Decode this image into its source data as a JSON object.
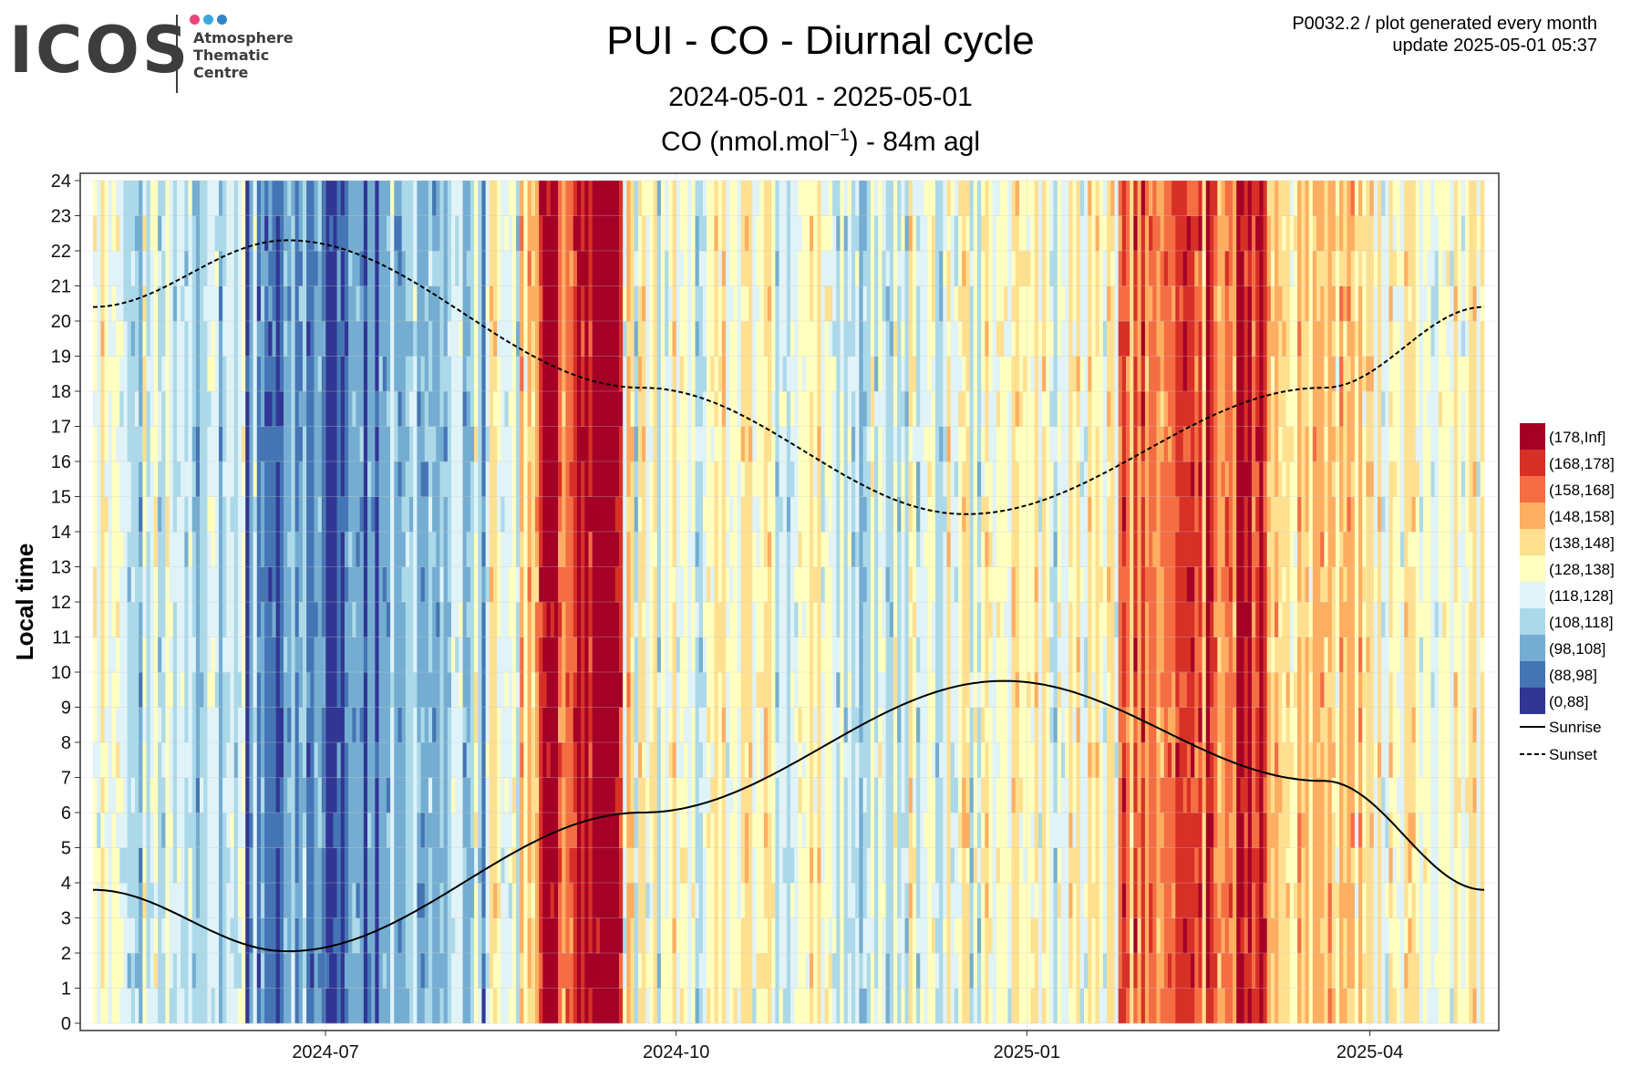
{
  "logo": {
    "word": "ICOS",
    "subtitle": "Atmosphere\nThematic\nCentre",
    "dot_colors": [
      "#e8457c",
      "#3aa8e0",
      "#2e86c9"
    ]
  },
  "header": {
    "title": "PUI - CO - Diurnal cycle",
    "date_range": "2024-05-01 - 2025-05-01",
    "plot_title_prefix": "CO (nmol.mol",
    "plot_title_sup": "−1",
    "plot_title_suffix": ") - 84m agl",
    "meta_line1": "P0032.2 / plot generated every month",
    "meta_line2": "update  2025-05-01 05:37"
  },
  "chart_data": {
    "type": "heatmap",
    "title": "PUI - CO - Diurnal cycle",
    "subtitle": "2024-05-01 - 2025-05-01",
    "plot_title": "CO (nmol.mol−1) - 84m agl",
    "xlabel": "",
    "ylabel": "Local time",
    "x_range": [
      "2024-05-01",
      "2025-05-01"
    ],
    "x_ticks": [
      "2024-07",
      "2024-10",
      "2025-01",
      "2025-04"
    ],
    "x_tick_dates": [
      "2024-07-01",
      "2024-10-01",
      "2025-01-01",
      "2025-04-01"
    ],
    "y_ticks": [
      0,
      1,
      2,
      3,
      4,
      5,
      6,
      7,
      8,
      9,
      10,
      11,
      12,
      13,
      14,
      15,
      16,
      17,
      18,
      19,
      20,
      21,
      22,
      23,
      24
    ],
    "ylim": [
      0,
      24
    ],
    "grid": true,
    "legend_position": "right",
    "bins": [
      {
        "label": "(178,Inf]",
        "color": "#a50026"
      },
      {
        "label": "(168,178]",
        "color": "#d73027"
      },
      {
        "label": "(158,168]",
        "color": "#f46d43"
      },
      {
        "label": "(148,158]",
        "color": "#fdae61"
      },
      {
        "label": "(138,148]",
        "color": "#fee090"
      },
      {
        "label": "(128,138]",
        "color": "#ffffbf"
      },
      {
        "label": "(118,128]",
        "color": "#e0f3f8"
      },
      {
        "label": "(108,118]",
        "color": "#abd9e9"
      },
      {
        "label": "(98,108]",
        "color": "#74add1"
      },
      {
        "label": "(88,98]",
        "color": "#4575b4"
      },
      {
        "label": "(0,88]",
        "color": "#313695"
      }
    ],
    "periods": [
      {
        "start": "2024-05-01",
        "end": "2024-05-05",
        "dominant_bin": "(128,138]"
      },
      {
        "start": "2024-05-05",
        "end": "2024-05-28",
        "dominant_bin": "(118,128]"
      },
      {
        "start": "2024-05-28",
        "end": "2024-06-10",
        "dominant_bin": "(108,118]"
      },
      {
        "start": "2024-06-10",
        "end": "2024-06-25",
        "dominant_bin": "(98,108]"
      },
      {
        "start": "2024-06-25",
        "end": "2024-07-18",
        "dominant_bin": "(88,98]"
      },
      {
        "start": "2024-07-18",
        "end": "2024-08-12",
        "dominant_bin": "(108,118]"
      },
      {
        "start": "2024-08-12",
        "end": "2024-08-25",
        "dominant_bin": "(128,138]"
      },
      {
        "start": "2024-08-25",
        "end": "2024-09-05",
        "dominant_bin": "(168,178]"
      },
      {
        "start": "2024-09-05",
        "end": "2024-09-17",
        "dominant_bin": "(178,Inf]"
      },
      {
        "start": "2024-09-17",
        "end": "2024-10-25",
        "dominant_bin": "(128,138]"
      },
      {
        "start": "2024-10-25",
        "end": "2024-12-10",
        "dominant_bin": "(118,128]"
      },
      {
        "start": "2024-12-10",
        "end": "2025-01-25",
        "dominant_bin": "(128,138]"
      },
      {
        "start": "2025-01-25",
        "end": "2025-02-25",
        "dominant_bin": "(158,168]"
      },
      {
        "start": "2025-02-25",
        "end": "2025-03-05",
        "dominant_bin": "(178,Inf]"
      },
      {
        "start": "2025-03-05",
        "end": "2025-04-01",
        "dominant_bin": "(138,148]"
      },
      {
        "start": "2025-04-01",
        "end": "2025-05-01",
        "dominant_bin": "(128,138]"
      }
    ],
    "lines": [
      {
        "name": "Sunrise",
        "style": "solid",
        "points": [
          {
            "x": "2024-05-01",
            "y": 3.8
          },
          {
            "x": "2024-06-21",
            "y": 2.05
          },
          {
            "x": "2024-09-22",
            "y": 6.0
          },
          {
            "x": "2024-12-26",
            "y": 9.75
          },
          {
            "x": "2025-03-20",
            "y": 6.9
          },
          {
            "x": "2025-05-01",
            "y": 3.8
          }
        ]
      },
      {
        "name": "Sunset",
        "style": "dashed",
        "points": [
          {
            "x": "2024-05-01",
            "y": 20.4
          },
          {
            "x": "2024-06-21",
            "y": 22.3
          },
          {
            "x": "2024-09-22",
            "y": 18.1
          },
          {
            "x": "2024-12-16",
            "y": 14.5
          },
          {
            "x": "2025-03-20",
            "y": 18.1
          },
          {
            "x": "2025-05-01",
            "y": 20.4
          }
        ]
      }
    ]
  }
}
